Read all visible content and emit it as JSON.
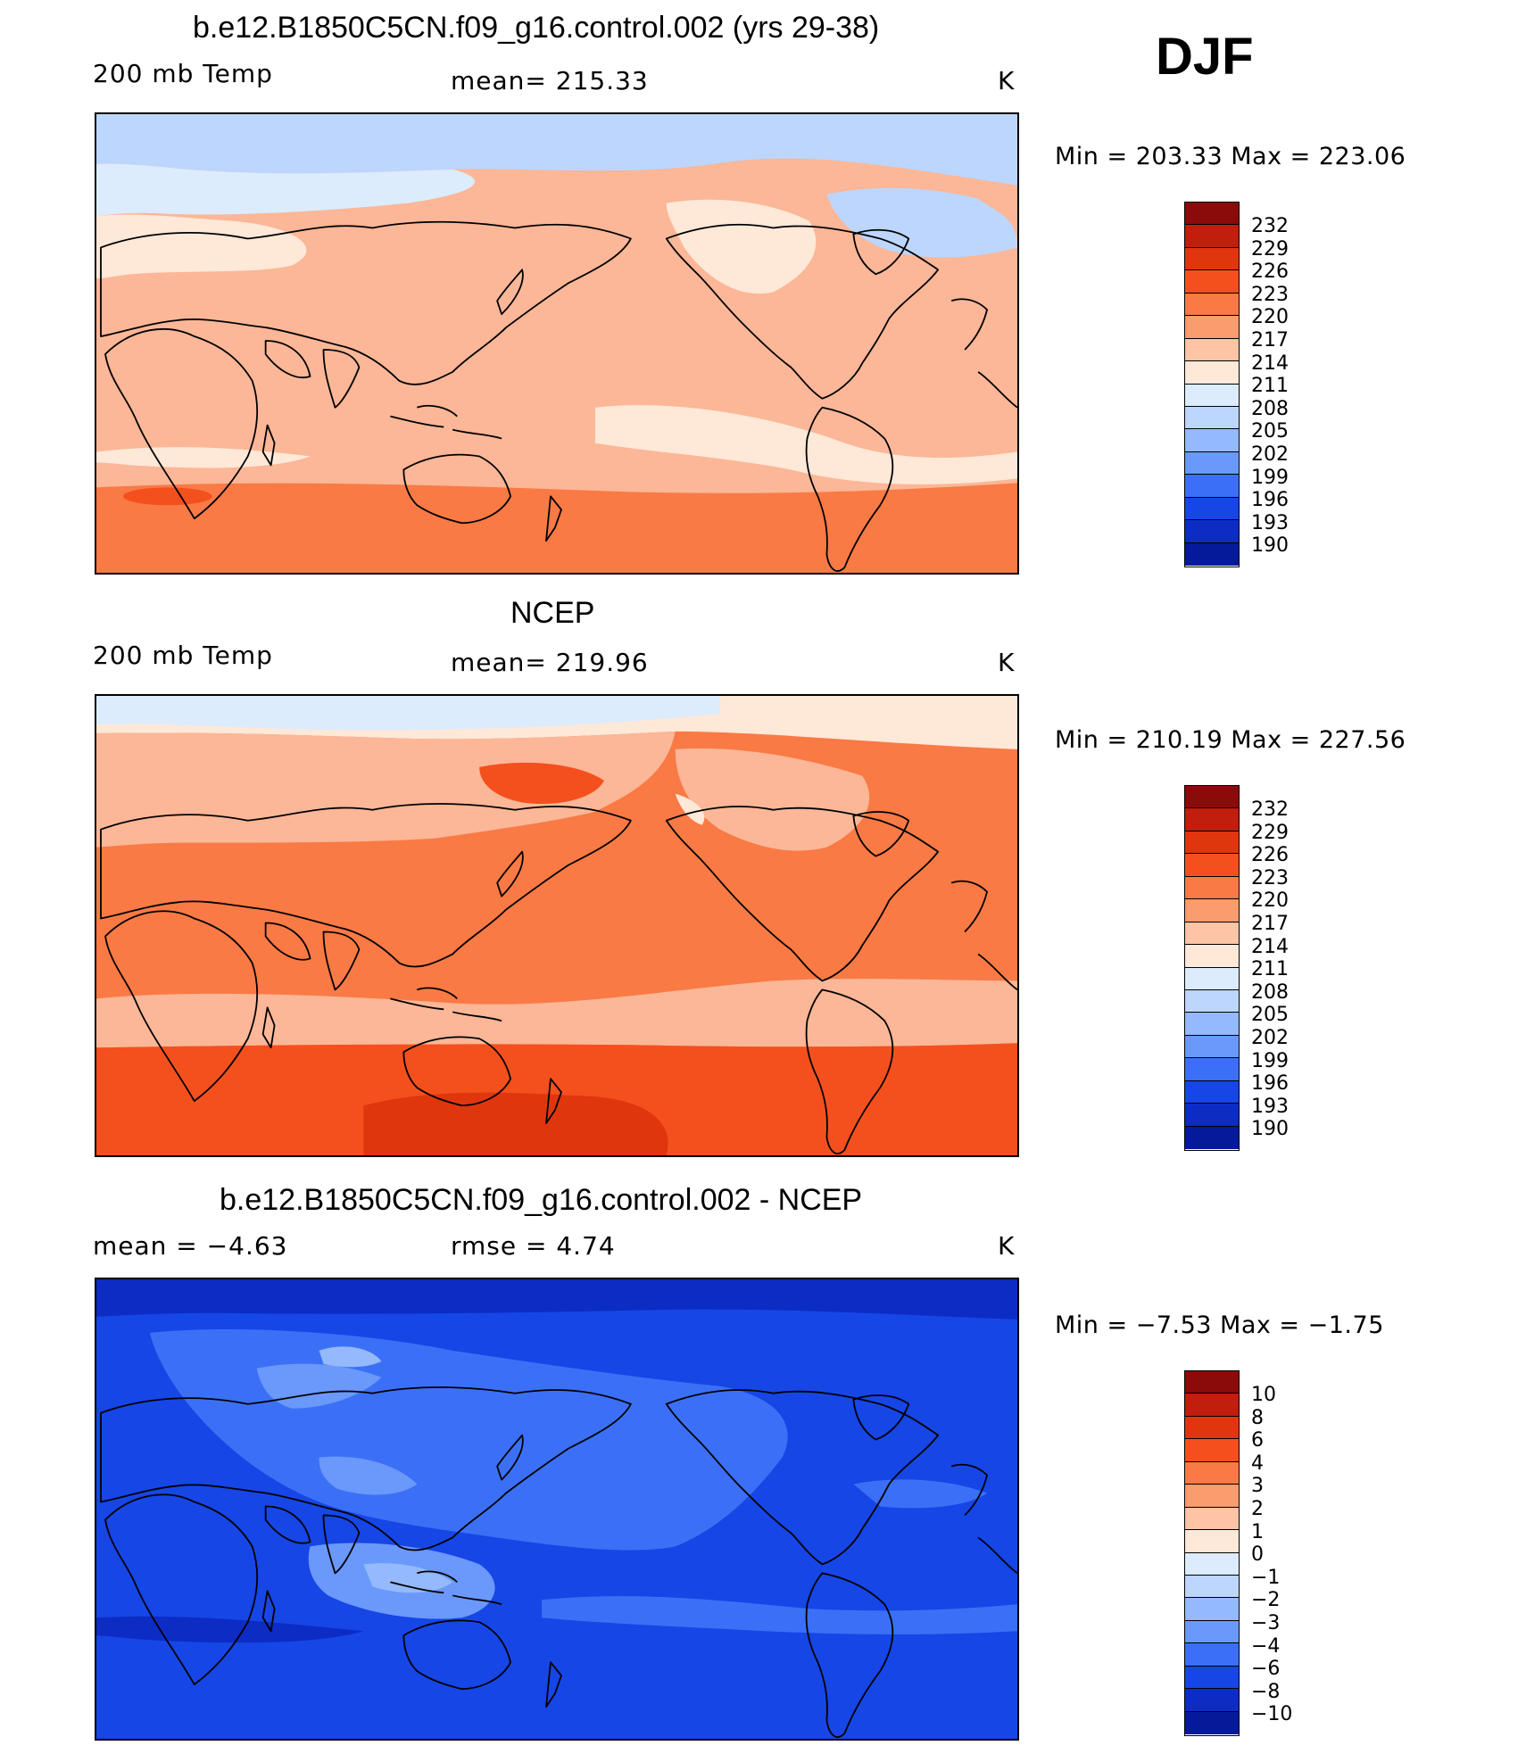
{
  "season": "DJF",
  "panels": [
    {
      "title": "b.e12.B1850C5CN.f09_g16.control.002 (yrs 29-38)",
      "left_label": "200 mb Temp",
      "center_label": "mean=  215.33",
      "units": "K",
      "minmax": "Min  =  203.33  Max  =  223.06",
      "colorbar_labels": [
        "232",
        "229",
        "226",
        "223",
        "220",
        "217",
        "214",
        "211",
        "208",
        "205",
        "202",
        "199",
        "196",
        "193",
        "190"
      ]
    },
    {
      "title": "NCEP",
      "left_label": "200 mb Temp",
      "center_label": "mean=  219.96",
      "units": "K",
      "minmax": "Min  =  210.19  Max  =  227.56",
      "colorbar_labels": [
        "232",
        "229",
        "226",
        "223",
        "220",
        "217",
        "214",
        "211",
        "208",
        "205",
        "202",
        "199",
        "196",
        "193",
        "190"
      ]
    },
    {
      "title": "b.e12.B1850C5CN.f09_g16.control.002 - NCEP",
      "left_label": "mean  =    −4.63",
      "center_label": "rmse  =     4.74",
      "units": "K",
      "minmax": "Min  =   −7.53  Max  =   −1.75",
      "colorbar_labels": [
        "10",
        "8",
        "6",
        "4",
        "3",
        "2",
        "1",
        "0",
        "−1",
        "−2",
        "−3",
        "−4",
        "−6",
        "−8",
        "−10"
      ]
    }
  ],
  "colorbar_colors": [
    "#8b0a0a",
    "#bf1f0c",
    "#e0360e",
    "#f4501e",
    "#f97a45",
    "#fb9c6e",
    "#fdc4a6",
    "#fee8d8",
    "#dcecfd",
    "#bcd6fd",
    "#94b9fc",
    "#6a98fb",
    "#3b70f6",
    "#1646e6",
    "#0c2cc4",
    "#051a9a"
  ],
  "map_fills": {
    "model": {
      "base": "#fbb797",
      "cold": "#bcd6fd",
      "pale": "#dcecfd",
      "cream": "#fee8d8",
      "warm": "#f97a45"
    },
    "ncep": {
      "base": "#f97a45",
      "cream": "#fee8d8",
      "pale": "#dcecfd",
      "light": "#fbb797",
      "hot": "#f4501e",
      "hotter": "#e0360e"
    },
    "diff": {
      "base": "#1646e6",
      "mid": "#3b70f6",
      "light": "#6a98fb",
      "lighter": "#94b9fc",
      "dark": "#0c2cc4"
    }
  }
}
